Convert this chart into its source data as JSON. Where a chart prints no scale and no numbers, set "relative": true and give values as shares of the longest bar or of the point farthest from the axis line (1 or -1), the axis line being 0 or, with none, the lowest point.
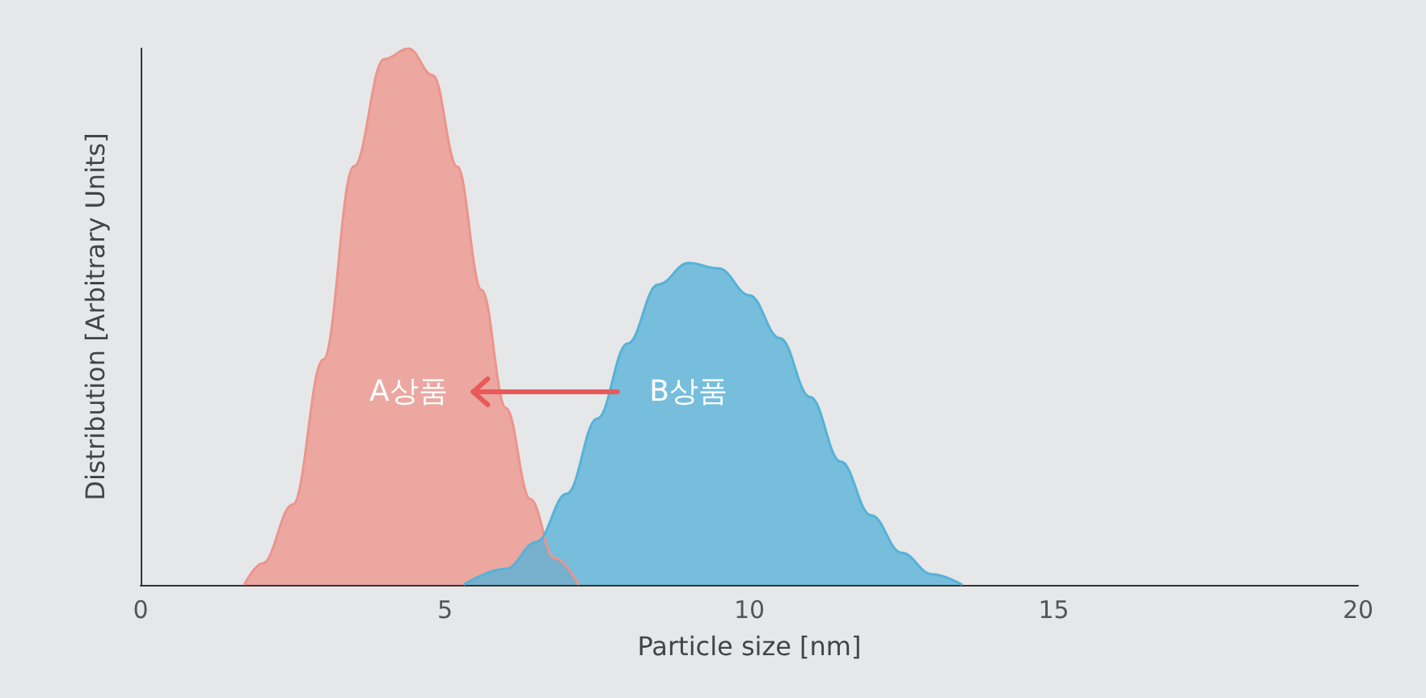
{
  "chart_data": {
    "type": "area",
    "relative": true,
    "xlabel": "Particle size [nm]",
    "ylabel": "Distribution [Arbitrary Units]",
    "xlim": [
      0,
      20
    ],
    "xticks": [
      0,
      5,
      10,
      15,
      20
    ],
    "grid": false,
    "series": [
      {
        "name": "A상품",
        "color": "#ec958c",
        "x": [
          1.7,
          2.0,
          2.5,
          3.0,
          3.5,
          4.0,
          4.4,
          4.8,
          5.2,
          5.6,
          6.0,
          6.4,
          6.8,
          7.2
        ],
        "values": [
          0,
          0.04,
          0.15,
          0.42,
          0.78,
          0.98,
          1,
          0.95,
          0.78,
          0.55,
          0.33,
          0.16,
          0.05,
          0
        ]
      },
      {
        "name": "B상품",
        "color": "#56b2d8",
        "x": [
          5.3,
          6.0,
          6.5,
          7.0,
          7.5,
          8.0,
          8.5,
          9.0,
          9.5,
          10.0,
          10.5,
          11.0,
          11.5,
          12.0,
          12.5,
          13.0,
          13.5
        ],
        "values": [
          0,
          0.03,
          0.08,
          0.17,
          0.31,
          0.45,
          0.56,
          0.6,
          0.59,
          0.54,
          0.46,
          0.35,
          0.23,
          0.13,
          0.06,
          0.02,
          0
        ]
      }
    ]
  }
}
